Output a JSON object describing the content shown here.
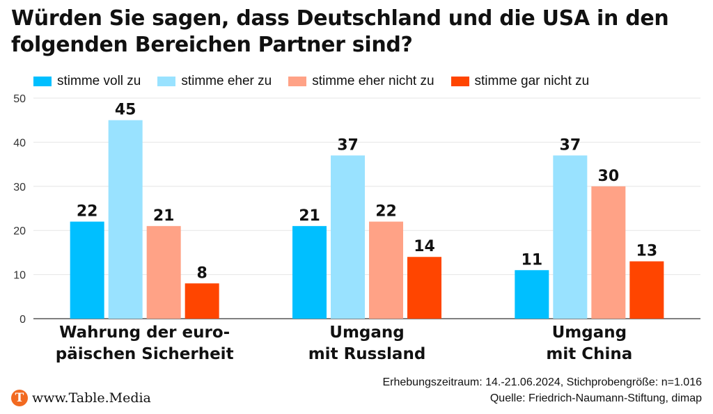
{
  "title": "Würden Sie sagen, dass Deutschland und die USA in den folgenden Bereichen Partner sind?",
  "footer": {
    "line1": "Erhebungszeitraum: 14.-21.06.2024, Stichprobengröße: n=1.016",
    "line2": "Quelle: Friedrich-Naumann-Stiftung, dimap"
  },
  "brand": {
    "logo_letter": "T",
    "text": "www.Table.Media"
  },
  "chart_data": {
    "type": "bar",
    "title": "Würden Sie sagen, dass Deutschland und die USA in den folgenden Bereichen Partner sind?",
    "categories": [
      [
        "Wahrung der euro-",
        "päischen Sicherheit"
      ],
      [
        "Umgang",
        "mit Russland"
      ],
      [
        "Umgang",
        "mit China"
      ]
    ],
    "series": [
      {
        "name": "stimme voll zu",
        "color": "#00bfff",
        "values": [
          22,
          21,
          11
        ]
      },
      {
        "name": "stimme eher zu",
        "color": "#99e2ff",
        "values": [
          45,
          37,
          37
        ]
      },
      {
        "name": "stimme eher nicht zu",
        "color": "#ffa286",
        "values": [
          21,
          22,
          30
        ]
      },
      {
        "name": "stimme gar nicht zu",
        "color": "#ff4500",
        "values": [
          8,
          14,
          13
        ]
      }
    ],
    "ylim": [
      0,
      50
    ],
    "yticks": [
      0,
      10,
      20,
      30,
      40,
      50
    ],
    "grid": true,
    "legend": "top-left"
  }
}
